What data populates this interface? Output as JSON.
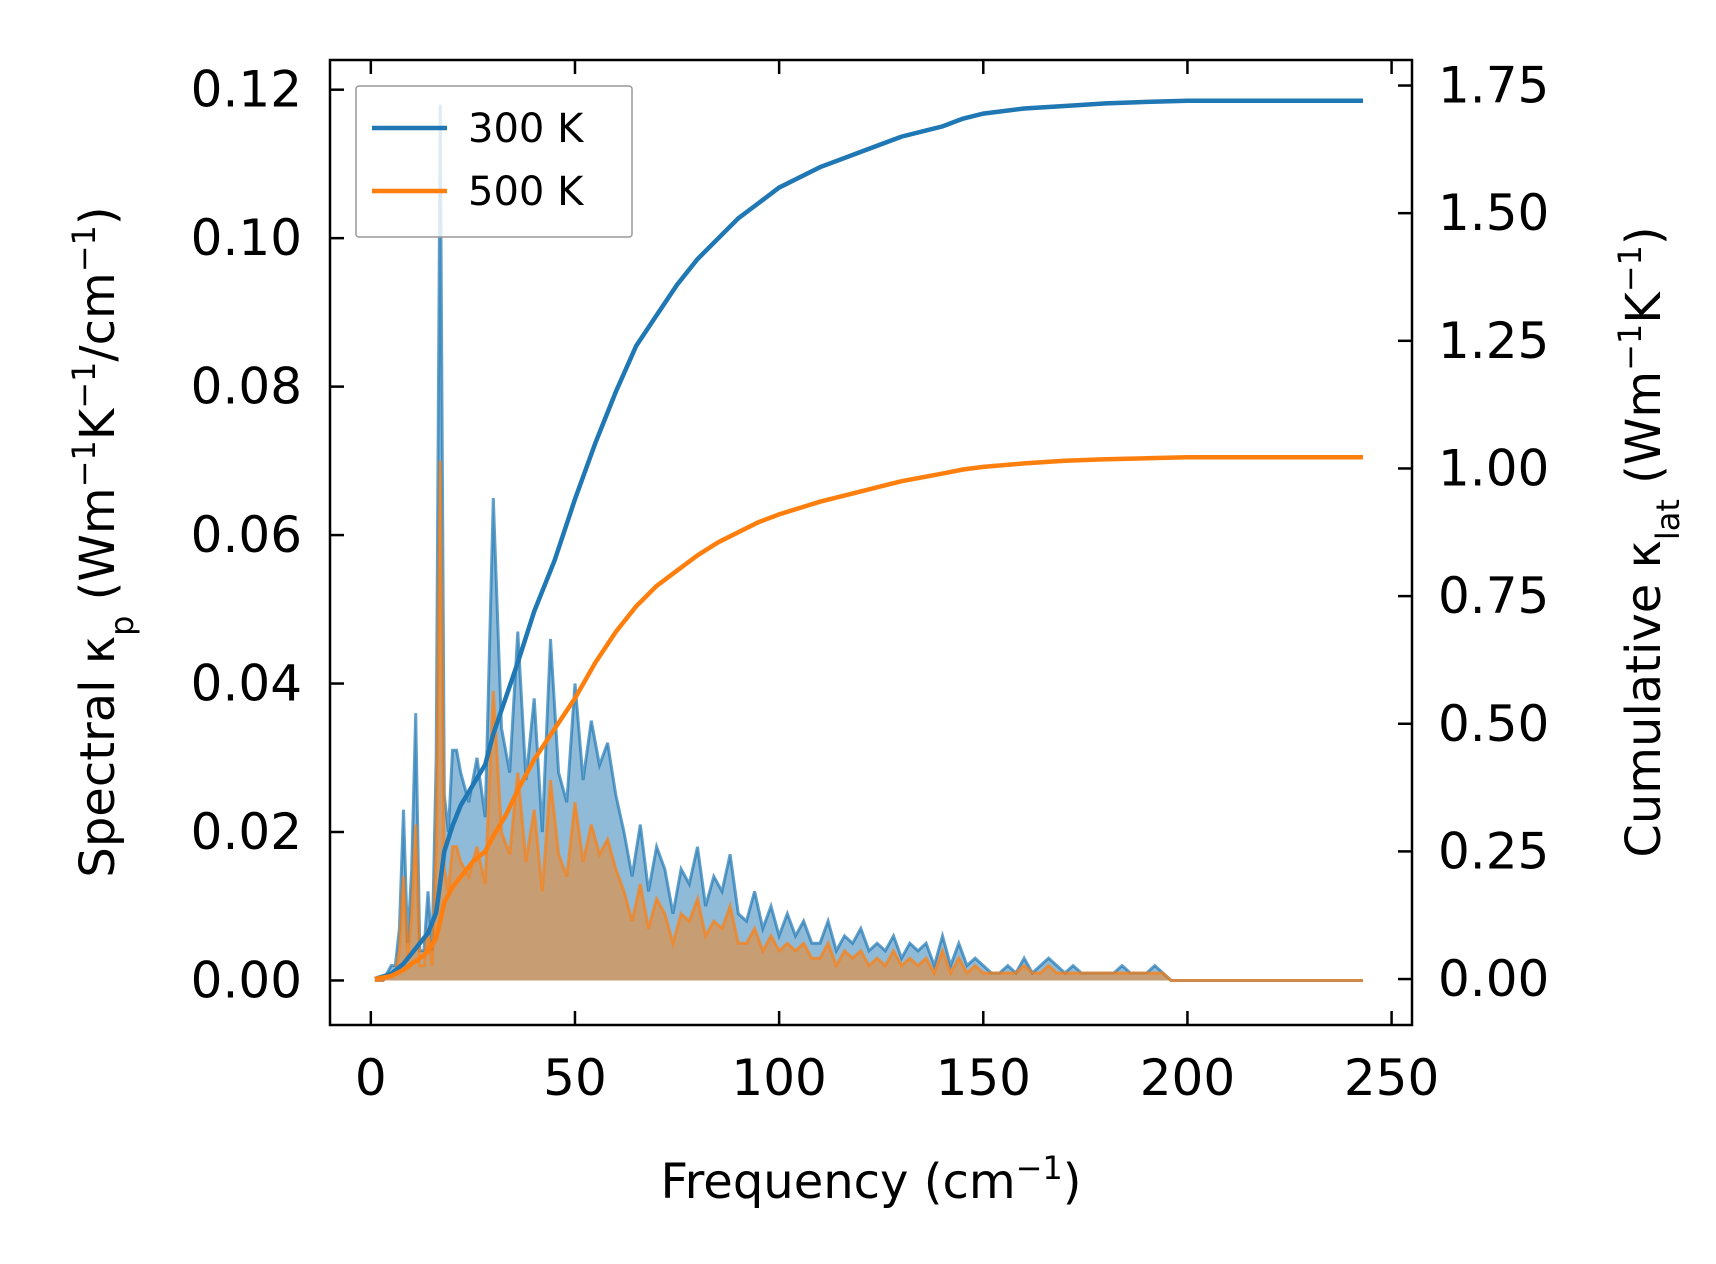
{
  "chart_data": {
    "type": "area",
    "xlabel": "Frequency (cm⁻¹)",
    "ylabel_left": "Spectral κₚ (Wm⁻¹K⁻¹/cm⁻¹)",
    "ylabel_right": "Cumulative κ_lat (Wm⁻¹K⁻¹)",
    "xlim": [
      -10,
      255
    ],
    "ylim_left": [
      -0.006,
      0.124
    ],
    "ylim_right": [
      -0.09,
      1.8
    ],
    "x_ticks": [
      0,
      50,
      100,
      150,
      200,
      250
    ],
    "x_tick_labels": [
      "0",
      "50",
      "100",
      "150",
      "200",
      "250"
    ],
    "y_left_ticks": [
      0.0,
      0.02,
      0.04,
      0.06,
      0.08,
      0.1,
      0.12
    ],
    "y_left_tick_labels": [
      "0.00",
      "0.02",
      "0.04",
      "0.06",
      "0.08",
      "0.10",
      "0.12"
    ],
    "y_right_ticks": [
      0.0,
      0.25,
      0.5,
      0.75,
      1.0,
      1.25,
      1.5,
      1.75
    ],
    "y_right_tick_labels": [
      "0.00",
      "0.25",
      "0.50",
      "0.75",
      "1.00",
      "1.25",
      "1.50",
      "1.75"
    ],
    "legend": {
      "position": "top-left",
      "entries": [
        "300 K",
        "500 K"
      ]
    },
    "colors": {
      "300K": "#1f77b4",
      "500K": "#ff7f0e",
      "overlap": "#c49a6c"
    },
    "spectral": {
      "x": [
        1,
        3,
        5,
        6,
        7,
        8,
        9,
        10,
        11,
        12,
        13,
        14,
        15,
        16,
        17,
        18,
        19,
        20,
        21,
        22,
        24,
        26,
        28,
        30,
        32,
        34,
        36,
        38,
        40,
        42,
        44,
        46,
        48,
        50,
        52,
        54,
        56,
        58,
        60,
        62,
        64,
        66,
        68,
        70,
        72,
        74,
        76,
        78,
        80,
        82,
        84,
        86,
        88,
        90,
        92,
        94,
        96,
        98,
        100,
        102,
        104,
        106,
        108,
        110,
        112,
        114,
        116,
        118,
        120,
        122,
        124,
        126,
        128,
        130,
        132,
        134,
        136,
        138,
        140,
        142,
        144,
        146,
        148,
        150,
        152,
        154,
        156,
        158,
        160,
        162,
        164,
        166,
        168,
        170,
        172,
        174,
        176,
        178,
        180,
        182,
        184,
        186,
        188,
        190,
        192,
        194,
        196,
        198,
        200,
        205,
        210,
        215,
        220,
        225,
        230,
        235,
        243
      ],
      "series": [
        {
          "name": "300 K",
          "values": [
            0.0,
            0.0,
            0.002,
            0.002,
            0.007,
            0.023,
            0.005,
            0.015,
            0.036,
            0.004,
            0.004,
            0.012,
            0.004,
            0.03,
            0.118,
            0.025,
            0.02,
            0.031,
            0.031,
            0.028,
            0.024,
            0.03,
            0.022,
            0.065,
            0.034,
            0.028,
            0.047,
            0.027,
            0.038,
            0.02,
            0.046,
            0.028,
            0.024,
            0.04,
            0.027,
            0.035,
            0.029,
            0.032,
            0.025,
            0.02,
            0.014,
            0.021,
            0.012,
            0.018,
            0.015,
            0.009,
            0.015,
            0.013,
            0.018,
            0.01,
            0.014,
            0.012,
            0.017,
            0.009,
            0.008,
            0.012,
            0.007,
            0.01,
            0.006,
            0.009,
            0.006,
            0.008,
            0.005,
            0.005,
            0.008,
            0.004,
            0.006,
            0.005,
            0.007,
            0.004,
            0.005,
            0.004,
            0.006,
            0.003,
            0.005,
            0.004,
            0.005,
            0.002,
            0.006,
            0.002,
            0.005,
            0.002,
            0.003,
            0.002,
            0.001,
            0.001,
            0.002,
            0.001,
            0.003,
            0.001,
            0.002,
            0.003,
            0.002,
            0.001,
            0.002,
            0.001,
            0.001,
            0.001,
            0.001,
            0.001,
            0.002,
            0.001,
            0.001,
            0.001,
            0.002,
            0.001,
            0.0,
            0.0,
            0.0,
            0.0,
            0.0,
            0.0,
            0.0,
            0.0,
            0.0,
            0.0,
            0.0
          ]
        },
        {
          "name": "500 K",
          "values": [
            0.0,
            0.0,
            0.001,
            0.001,
            0.004,
            0.014,
            0.003,
            0.009,
            0.021,
            0.002,
            0.002,
            0.007,
            0.002,
            0.018,
            0.07,
            0.015,
            0.012,
            0.018,
            0.018,
            0.016,
            0.014,
            0.018,
            0.013,
            0.039,
            0.02,
            0.017,
            0.028,
            0.016,
            0.023,
            0.012,
            0.027,
            0.017,
            0.014,
            0.024,
            0.016,
            0.021,
            0.017,
            0.019,
            0.015,
            0.012,
            0.008,
            0.013,
            0.007,
            0.011,
            0.009,
            0.005,
            0.009,
            0.008,
            0.011,
            0.006,
            0.008,
            0.007,
            0.01,
            0.005,
            0.005,
            0.007,
            0.004,
            0.006,
            0.004,
            0.005,
            0.004,
            0.005,
            0.003,
            0.003,
            0.005,
            0.002,
            0.004,
            0.003,
            0.004,
            0.002,
            0.003,
            0.002,
            0.004,
            0.002,
            0.003,
            0.002,
            0.003,
            0.001,
            0.004,
            0.001,
            0.003,
            0.001,
            0.002,
            0.001,
            0.001,
            0.001,
            0.001,
            0.001,
            0.002,
            0.001,
            0.001,
            0.002,
            0.001,
            0.001,
            0.001,
            0.001,
            0.001,
            0.001,
            0.001,
            0.001,
            0.001,
            0.001,
            0.001,
            0.001,
            0.001,
            0.001,
            0.0,
            0.0,
            0.0,
            0.0,
            0.0,
            0.0,
            0.0,
            0.0,
            0.0,
            0.0,
            0.0
          ]
        }
      ]
    },
    "cumulative": {
      "x": [
        1,
        5,
        8,
        10,
        12,
        14,
        16,
        18,
        20,
        22,
        25,
        28,
        30,
        33,
        36,
        40,
        45,
        50,
        55,
        60,
        65,
        70,
        75,
        80,
        85,
        90,
        95,
        100,
        110,
        120,
        130,
        140,
        145,
        150,
        160,
        170,
        180,
        190,
        200,
        210,
        220,
        230,
        243
      ],
      "series": [
        {
          "name": "300 K",
          "values": [
            0.0,
            0.01,
            0.03,
            0.05,
            0.07,
            0.09,
            0.13,
            0.25,
            0.3,
            0.34,
            0.38,
            0.42,
            0.48,
            0.55,
            0.62,
            0.72,
            0.82,
            0.94,
            1.05,
            1.15,
            1.24,
            1.3,
            1.36,
            1.41,
            1.45,
            1.49,
            1.52,
            1.55,
            1.59,
            1.62,
            1.65,
            1.67,
            1.685,
            1.695,
            1.705,
            1.71,
            1.715,
            1.718,
            1.72,
            1.72,
            1.72,
            1.72,
            1.72
          ]
        },
        {
          "name": "500 K",
          "values": [
            0.0,
            0.006,
            0.018,
            0.03,
            0.04,
            0.055,
            0.08,
            0.15,
            0.18,
            0.2,
            0.23,
            0.25,
            0.28,
            0.32,
            0.37,
            0.43,
            0.49,
            0.55,
            0.62,
            0.68,
            0.73,
            0.77,
            0.8,
            0.83,
            0.855,
            0.875,
            0.895,
            0.91,
            0.935,
            0.955,
            0.975,
            0.99,
            0.998,
            1.003,
            1.01,
            1.015,
            1.018,
            1.02,
            1.022,
            1.022,
            1.022,
            1.022,
            1.022
          ]
        }
      ]
    }
  }
}
